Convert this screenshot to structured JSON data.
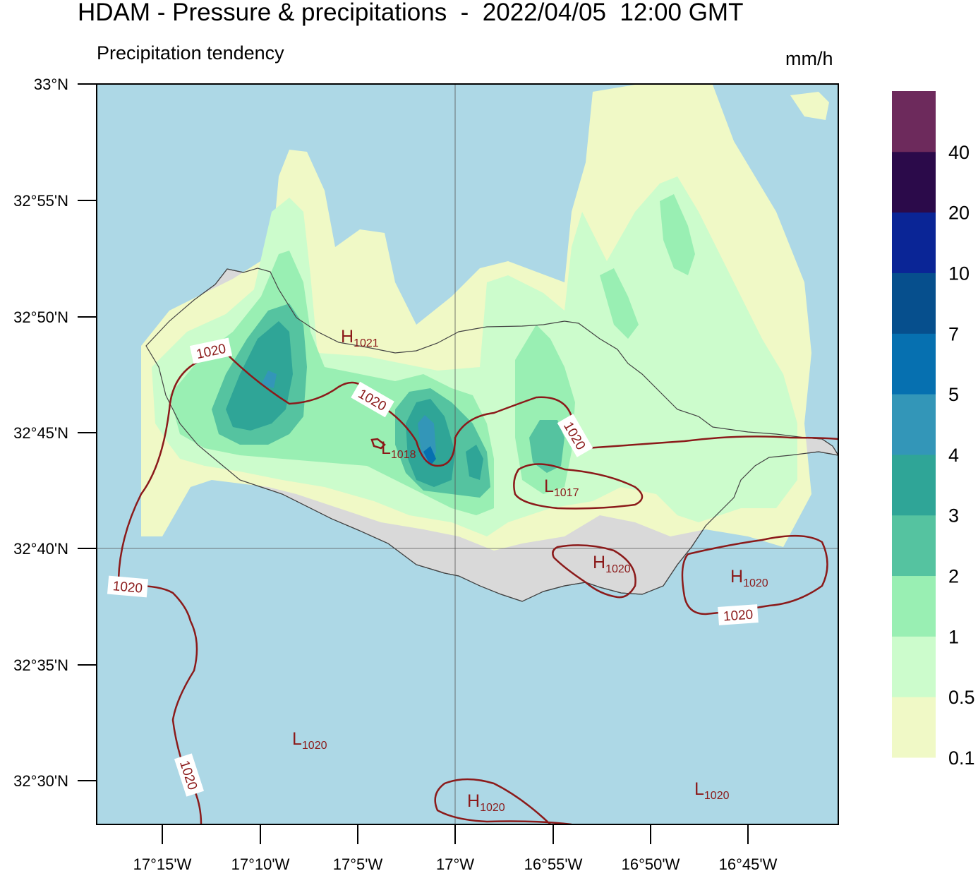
{
  "title": "HDAM - Pressure & precipitations  -  2022/04/05  12:00 GMT",
  "subtitle": "Precipitation tendency",
  "units": "mm/h",
  "lat_labels": [
    "33°N",
    "32°55'N",
    "32°50'N",
    "32°45'N",
    "32°40'N",
    "32°35'N",
    "32°30'N"
  ],
  "lon_labels": [
    "17°15'W",
    "17°10'W",
    "17°5'W",
    "17°W",
    "16°55'W",
    "16°50'W",
    "16°45'W"
  ],
  "colorbar": {
    "labels": [
      "0.1",
      "0.5",
      "1",
      "2",
      "3",
      "4",
      "5",
      "7",
      "10",
      "20",
      "40"
    ],
    "colors": [
      "#f0f9c6",
      "#ccfccc",
      "#99efb3",
      "#55c3a0",
      "#2fa597",
      "#3396b8",
      "#0670b0",
      "#064f8d",
      "#0a2596",
      "#2b0a4a",
      "#6d2a5c"
    ]
  },
  "colors": {
    "sea": "#add8e6",
    "land": "#d9d9d9",
    "isobar": "#8b1a1a"
  },
  "isobar_labels": [
    "1020",
    "1020",
    "1020",
    "1020",
    "1020",
    "1020"
  ],
  "pressure_centers": [
    {
      "type": "H",
      "value": "1021"
    },
    {
      "type": "L",
      "value": "1018"
    },
    {
      "type": "L",
      "value": "1017"
    },
    {
      "type": "H",
      "value": "1020"
    },
    {
      "type": "H",
      "value": "1020"
    },
    {
      "type": "L",
      "value": "1020"
    },
    {
      "type": "H",
      "value": "1020"
    },
    {
      "type": "L",
      "value": "1020"
    }
  ]
}
